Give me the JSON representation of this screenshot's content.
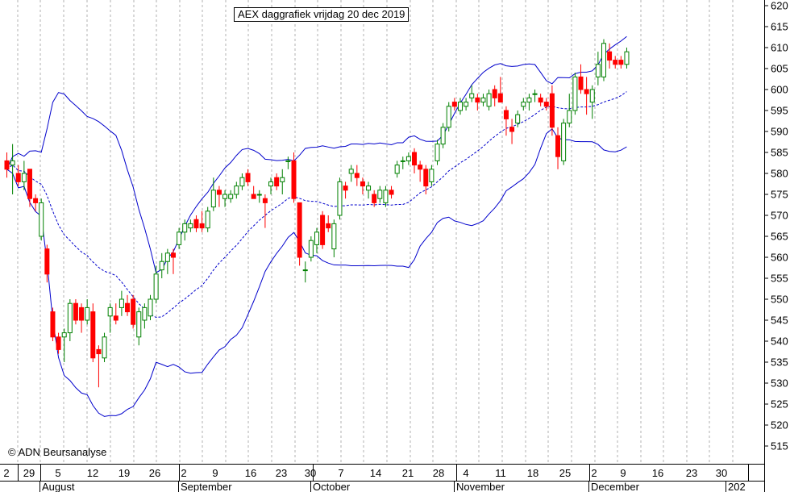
{
  "chart_data": {
    "type": "candlestick",
    "title": "AEX daggrafiek vrijdag 20 dec 2019",
    "copyright": "© ADN Beursanalyse",
    "ylim": [
      510,
      622
    ],
    "y_ticks": [
      515,
      520,
      525,
      530,
      535,
      540,
      545,
      550,
      555,
      560,
      565,
      570,
      575,
      580,
      585,
      590,
      595,
      600,
      605,
      610,
      615,
      620
    ],
    "x_ticks": [
      "2",
      "29",
      "5",
      "12",
      "19",
      "26",
      "2",
      "9",
      "16",
      "23",
      "30",
      "7",
      "14",
      "21",
      "28",
      "4",
      "11",
      "18",
      "25",
      "2",
      "9",
      "16",
      "23",
      "30"
    ],
    "x_months": [
      "August",
      "September",
      "October",
      "November",
      "December",
      "202"
    ],
    "colors": {
      "up": "#008000",
      "down": "#ff0000",
      "bands": "#0000cc",
      "grid": "#aaaaaa"
    },
    "candles": [
      {
        "o": 583,
        "h": 585,
        "l": 579,
        "c": 581
      },
      {
        "o": 582,
        "h": 587,
        "l": 575,
        "c": 583
      },
      {
        "o": 580,
        "h": 582,
        "l": 577,
        "c": 578
      },
      {
        "o": 578,
        "h": 583,
        "l": 576,
        "c": 580
      },
      {
        "o": 581,
        "h": 581,
        "l": 572,
        "c": 574
      },
      {
        "o": 574,
        "h": 575,
        "l": 571,
        "c": 573
      },
      {
        "o": 565,
        "h": 574,
        "l": 564,
        "c": 573
      },
      {
        "o": 562,
        "h": 563,
        "l": 554,
        "c": 556
      },
      {
        "o": 547,
        "h": 548,
        "l": 540,
        "c": 541
      },
      {
        "o": 541,
        "h": 542,
        "l": 537,
        "c": 538
      },
      {
        "o": 541,
        "h": 543,
        "l": 535,
        "c": 542
      },
      {
        "o": 542,
        "h": 550,
        "l": 540,
        "c": 549
      },
      {
        "o": 549,
        "h": 550,
        "l": 544,
        "c": 545
      },
      {
        "o": 548,
        "h": 549,
        "l": 542,
        "c": 545
      },
      {
        "o": 545,
        "h": 550,
        "l": 544,
        "c": 548
      },
      {
        "o": 547,
        "h": 549,
        "l": 535,
        "c": 536
      },
      {
        "o": 538,
        "h": 539,
        "l": 529,
        "c": 537
      },
      {
        "o": 536,
        "h": 542,
        "l": 535,
        "c": 541
      },
      {
        "o": 546,
        "h": 549,
        "l": 542,
        "c": 548
      },
      {
        "o": 546,
        "h": 549,
        "l": 544,
        "c": 545
      },
      {
        "o": 548,
        "h": 552,
        "l": 546,
        "c": 550
      },
      {
        "o": 549,
        "h": 551,
        "l": 546,
        "c": 547
      },
      {
        "o": 550,
        "h": 551,
        "l": 543,
        "c": 544
      },
      {
        "o": 541,
        "h": 548,
        "l": 539,
        "c": 547
      },
      {
        "o": 545,
        "h": 549,
        "l": 543,
        "c": 548
      },
      {
        "o": 546,
        "h": 551,
        "l": 545,
        "c": 550
      },
      {
        "o": 550,
        "h": 558,
        "l": 549,
        "c": 556
      },
      {
        "o": 557,
        "h": 561,
        "l": 555,
        "c": 559
      },
      {
        "o": 559,
        "h": 562,
        "l": 556,
        "c": 561
      },
      {
        "o": 561,
        "h": 562,
        "l": 556,
        "c": 560
      },
      {
        "o": 563,
        "h": 567,
        "l": 562,
        "c": 566
      },
      {
        "o": 566,
        "h": 569,
        "l": 564,
        "c": 568
      },
      {
        "o": 567,
        "h": 569,
        "l": 566,
        "c": 568
      },
      {
        "o": 569,
        "h": 570,
        "l": 566,
        "c": 567
      },
      {
        "o": 568,
        "h": 571,
        "l": 566,
        "c": 567
      },
      {
        "o": 567,
        "h": 572,
        "l": 566,
        "c": 571
      },
      {
        "o": 572,
        "h": 579,
        "l": 571,
        "c": 576
      },
      {
        "o": 576,
        "h": 577,
        "l": 572,
        "c": 575
      },
      {
        "o": 574,
        "h": 576,
        "l": 572,
        "c": 575
      },
      {
        "o": 574,
        "h": 576,
        "l": 573,
        "c": 575
      },
      {
        "o": 575,
        "h": 578,
        "l": 574,
        "c": 577
      },
      {
        "o": 577,
        "h": 580,
        "l": 576,
        "c": 579
      },
      {
        "o": 580,
        "h": 581,
        "l": 577,
        "c": 578
      },
      {
        "o": 575,
        "h": 577,
        "l": 574,
        "c": 574
      },
      {
        "o": 575,
        "h": 576,
        "l": 573,
        "c": 575
      },
      {
        "o": 574,
        "h": 575,
        "l": 567,
        "c": 573
      },
      {
        "o": 577,
        "h": 579,
        "l": 575,
        "c": 578
      },
      {
        "o": 579,
        "h": 580,
        "l": 576,
        "c": 577
      },
      {
        "o": 578,
        "h": 581,
        "l": 575,
        "c": 579
      },
      {
        "o": 583,
        "h": 584,
        "l": 581,
        "c": 583
      },
      {
        "o": 583,
        "h": 585,
        "l": 573,
        "c": 574
      },
      {
        "o": 573,
        "h": 573,
        "l": 558,
        "c": 560
      },
      {
        "o": 557,
        "h": 559,
        "l": 554,
        "c": 557
      },
      {
        "o": 560,
        "h": 565,
        "l": 559,
        "c": 564
      },
      {
        "o": 563,
        "h": 567,
        "l": 561,
        "c": 566
      },
      {
        "o": 570,
        "h": 571,
        "l": 562,
        "c": 563
      },
      {
        "o": 568,
        "h": 570,
        "l": 566,
        "c": 567
      },
      {
        "o": 562,
        "h": 569,
        "l": 560,
        "c": 568
      },
      {
        "o": 570,
        "h": 579,
        "l": 569,
        "c": 578
      },
      {
        "o": 577,
        "h": 578,
        "l": 574,
        "c": 576
      },
      {
        "o": 580,
        "h": 582,
        "l": 578,
        "c": 581
      },
      {
        "o": 580,
        "h": 582,
        "l": 577,
        "c": 579
      },
      {
        "o": 578,
        "h": 579,
        "l": 575,
        "c": 577
      },
      {
        "o": 576,
        "h": 578,
        "l": 574,
        "c": 577
      },
      {
        "o": 575,
        "h": 576,
        "l": 572,
        "c": 573
      },
      {
        "o": 574,
        "h": 577,
        "l": 573,
        "c": 576
      },
      {
        "o": 573,
        "h": 577,
        "l": 572,
        "c": 576
      },
      {
        "o": 576,
        "h": 577,
        "l": 574,
        "c": 575
      },
      {
        "o": 580,
        "h": 583,
        "l": 579,
        "c": 582
      },
      {
        "o": 583,
        "h": 584,
        "l": 581,
        "c": 583
      },
      {
        "o": 583,
        "h": 585,
        "l": 582,
        "c": 584
      },
      {
        "o": 585,
        "h": 586,
        "l": 580,
        "c": 582
      },
      {
        "o": 582,
        "h": 583,
        "l": 578,
        "c": 581
      },
      {
        "o": 581,
        "h": 582,
        "l": 575,
        "c": 577
      },
      {
        "o": 578,
        "h": 582,
        "l": 577,
        "c": 581
      },
      {
        "o": 583,
        "h": 588,
        "l": 582,
        "c": 587
      },
      {
        "o": 587,
        "h": 592,
        "l": 586,
        "c": 591
      },
      {
        "o": 591,
        "h": 597,
        "l": 590,
        "c": 596
      },
      {
        "o": 597,
        "h": 598,
        "l": 595,
        "c": 596
      },
      {
        "o": 595,
        "h": 598,
        "l": 594,
        "c": 597
      },
      {
        "o": 596,
        "h": 598,
        "l": 595,
        "c": 597
      },
      {
        "o": 598,
        "h": 601,
        "l": 597,
        "c": 599
      },
      {
        "o": 598,
        "h": 599,
        "l": 595,
        "c": 597
      },
      {
        "o": 597,
        "h": 599,
        "l": 596,
        "c": 598
      },
      {
        "o": 596,
        "h": 600,
        "l": 595,
        "c": 599
      },
      {
        "o": 600,
        "h": 601,
        "l": 596,
        "c": 598
      },
      {
        "o": 599,
        "h": 603,
        "l": 597,
        "c": 597
      },
      {
        "o": 595,
        "h": 596,
        "l": 589,
        "c": 593
      },
      {
        "o": 591,
        "h": 593,
        "l": 587,
        "c": 590
      },
      {
        "o": 592,
        "h": 595,
        "l": 591,
        "c": 594
      },
      {
        "o": 596,
        "h": 598,
        "l": 595,
        "c": 597
      },
      {
        "o": 597,
        "h": 599,
        "l": 595,
        "c": 598
      },
      {
        "o": 599,
        "h": 600,
        "l": 597,
        "c": 599
      },
      {
        "o": 598,
        "h": 599,
        "l": 596,
        "c": 597
      },
      {
        "o": 597,
        "h": 598,
        "l": 595,
        "c": 596
      },
      {
        "o": 599,
        "h": 601,
        "l": 589,
        "c": 591
      },
      {
        "o": 589,
        "h": 591,
        "l": 581,
        "c": 584
      },
      {
        "o": 583,
        "h": 593,
        "l": 582,
        "c": 592
      },
      {
        "o": 592,
        "h": 599,
        "l": 591,
        "c": 595
      },
      {
        "o": 595,
        "h": 604,
        "l": 594,
        "c": 603
      },
      {
        "o": 603,
        "h": 606,
        "l": 599,
        "c": 600
      },
      {
        "o": 600,
        "h": 603,
        "l": 594,
        "c": 599
      },
      {
        "o": 597,
        "h": 601,
        "l": 593,
        "c": 600
      },
      {
        "o": 603,
        "h": 609,
        "l": 601,
        "c": 606
      },
      {
        "o": 603,
        "h": 612,
        "l": 602,
        "c": 611
      },
      {
        "o": 609,
        "h": 611,
        "l": 605,
        "c": 607
      },
      {
        "o": 607,
        "h": 608,
        "l": 605,
        "c": 606
      },
      {
        "o": 607,
        "h": 608,
        "l": 605,
        "c": 606
      },
      {
        "o": 606,
        "h": 610,
        "l": 605,
        "c": 609
      }
    ]
  }
}
